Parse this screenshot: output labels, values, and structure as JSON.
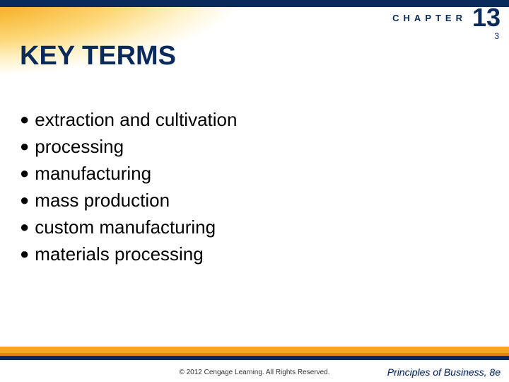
{
  "colors": {
    "top_bar": "#0a2a5c",
    "chapter_label": "#0a2a5c",
    "chapter_number": "#0a2a5c",
    "page_number": "#0a2a5c",
    "title": "#0a2a5c",
    "term_text": "#000000",
    "bullet": "#000000",
    "stripe1": "#f5a623",
    "stripe2": "#e67e22",
    "stripe3": "#0a2a5c",
    "copyright": "#333333",
    "book_title": "#0a2a5c",
    "background": "#ffffff"
  },
  "header": {
    "chapter_label": "CHAPTER",
    "chapter_number": "13",
    "page_number": "3"
  },
  "title": "KEY TERMS",
  "terms": [
    "extraction and cultivation",
    "processing",
    "manufacturing",
    "mass production",
    "custom manufacturing",
    "materials processing"
  ],
  "footer": {
    "copyright": "© 2012 Cengage Learning. All Rights Reserved.",
    "book_title": "Principles of Business, 8e"
  },
  "typography": {
    "title_fontsize": 38,
    "term_fontsize": 26,
    "chapter_label_fontsize": 13,
    "chapter_number_fontsize": 36,
    "footer_fontsize": 10,
    "book_title_fontsize": 14
  }
}
